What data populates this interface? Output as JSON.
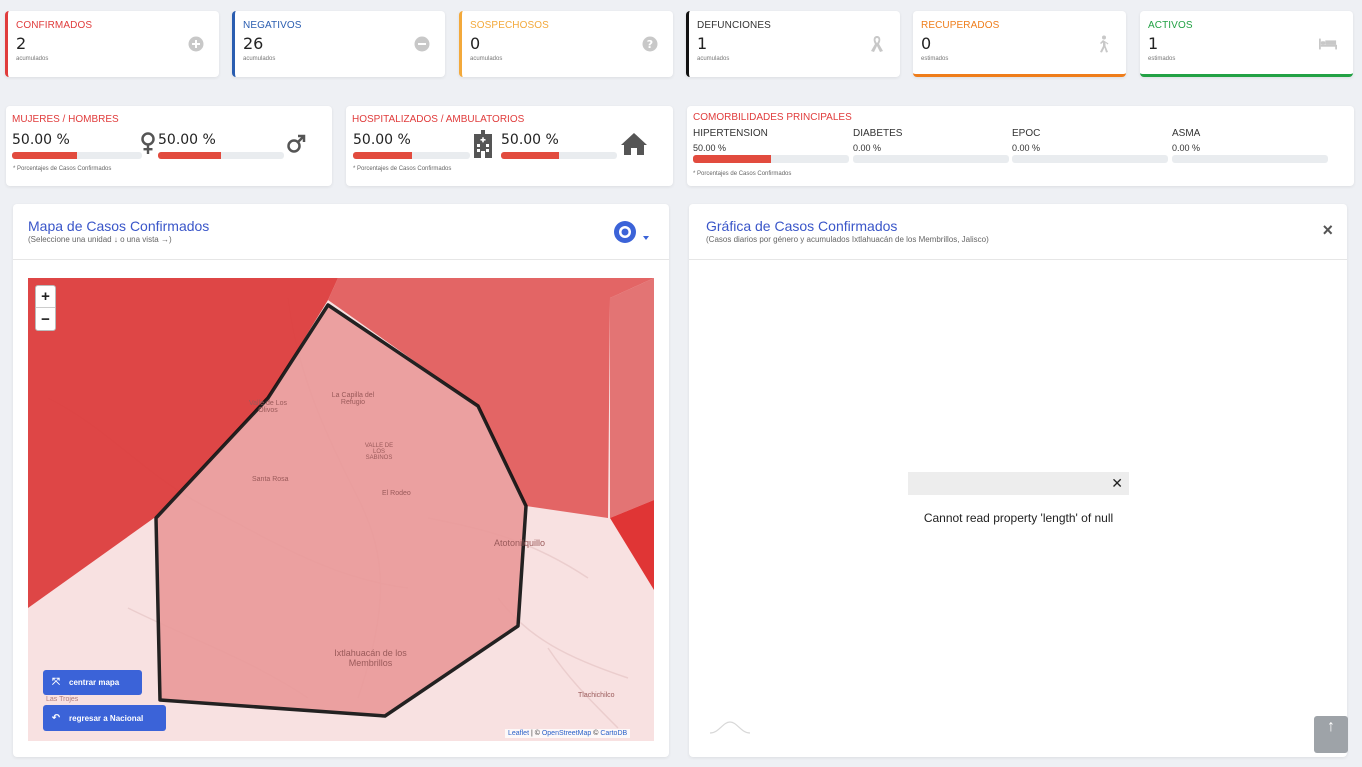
{
  "stats": [
    {
      "label": "CONFIRMADOS",
      "value": "2",
      "sub": "acumulados",
      "color": "#e03c3c",
      "icon": "plus-circle-icon"
    },
    {
      "label": "NEGATIVOS",
      "value": "26",
      "sub": "acumulados",
      "color": "#2a5db0",
      "icon": "minus-circle-icon"
    },
    {
      "label": "SOSPECHOSOS",
      "value": "0",
      "sub": "acumulados",
      "color": "#f3a93b",
      "icon": "question-circle-icon"
    },
    {
      "label": "DEFUNCIONES",
      "value": "1",
      "sub": "acumulados",
      "color": "#111111",
      "icon": "ribbon-icon"
    },
    {
      "label": "RECUPERADOS",
      "value": "0",
      "sub": "estimados",
      "color": "#ef7d1a",
      "icon": "walking-person-icon"
    },
    {
      "label": "ACTIVOS",
      "value": "1",
      "sub": "estimados",
      "color": "#22a144",
      "icon": "hospital-bed-icon"
    }
  ],
  "gender": {
    "title": "MUJERES / HOMBRES",
    "women_pct": "50.00 %",
    "men_pct": "50.00 %",
    "women_fill": 0.5,
    "men_fill": 0.5,
    "footnote": "* Porcentajes de Casos Confirmados"
  },
  "hospital": {
    "title": "HOSPITALIZADOS / AMBULATORIOS",
    "hosp_pct": "50.00 %",
    "amb_pct": "50.00 %",
    "hosp_fill": 0.5,
    "amb_fill": 0.5,
    "footnote": "* Porcentajes de Casos Confirmados"
  },
  "comorbidities": {
    "title": "COMORBILIDADES PRINCIPALES",
    "items": [
      {
        "name": "HIPERTENSION",
        "pct": "50.00 %",
        "fill": 0.5
      },
      {
        "name": "DIABETES",
        "pct": "0.00 %",
        "fill": 0
      },
      {
        "name": "EPOC",
        "pct": "0.00 %",
        "fill": 0
      },
      {
        "name": "ASMA",
        "pct": "0.00 %",
        "fill": 0
      }
    ],
    "footnote": "* Porcentajes de Casos Confirmados"
  },
  "map_card": {
    "title": "Mapa de Casos Confirmados",
    "subtitle": "(Seleccione una unidad ↓ o una vista →)",
    "zoom_in": "+",
    "zoom_out": "−",
    "center_button": "centrar mapa",
    "national_button": "regresar a Nacional",
    "attribution_leaflet": "Leaflet",
    "attribution_sep": " | © ",
    "attribution_osm": "OpenStreetMap",
    "attribution_sep2": " © ",
    "attribution_carto": "CartoDB",
    "place_labels": [
      "La Capilla del Refugio",
      "Valle de Los Olivos",
      "VALLE DE LOS SABINOS",
      "Santa Rosa",
      "El Rodeo",
      "Atotonilquillo",
      "Ixtlahuacán de los Membrillos",
      "Tlachichilco",
      "Las Trojes"
    ]
  },
  "chart_card": {
    "title": "Gráfica de Casos Confirmados",
    "subtitle": "(Casos diarios por género y acumulados Ixtlahuacán de los Membrillos, Jalisco)",
    "close": "×",
    "error_message": "Cannot read property 'length' of null",
    "error_close": "✕"
  },
  "scroll_top_icon": "↑"
}
